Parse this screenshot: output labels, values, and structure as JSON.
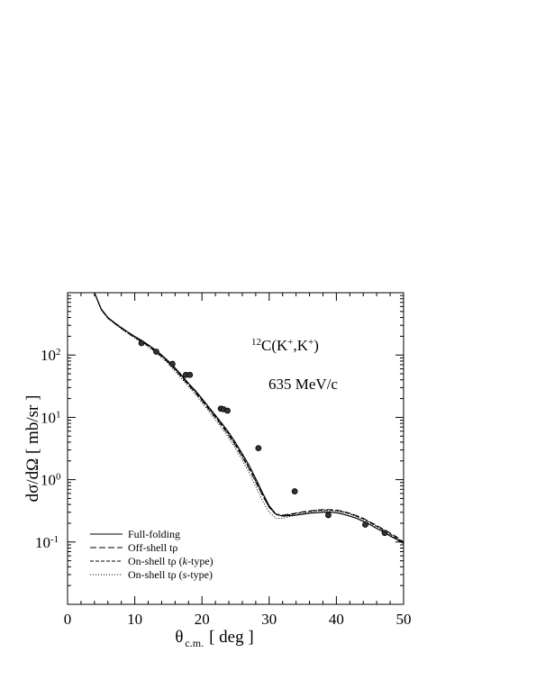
{
  "chart_data": {
    "type": "line",
    "title": "",
    "reaction": {
      "superscript": "12",
      "base": "C(K",
      "sup1": "+",
      "mid": ",K",
      "sup2": "+",
      "end": ")"
    },
    "momentum_label": "635 MeV/c",
    "xlabel": {
      "symbol": "θ",
      "subscript": "c.m.",
      "rest": "[ deg ]"
    },
    "ylabel": "dσ/dΩ   [ mb/sr ]",
    "xlim": [
      0,
      50
    ],
    "ylim": [
      0.01,
      1000
    ],
    "y_scale": "log",
    "x_ticks": [
      0,
      10,
      20,
      30,
      40,
      50
    ],
    "x_tick_labels": [
      "0",
      "10",
      "20",
      "30",
      "40",
      "50"
    ],
    "y_major_ticks": [
      {
        "value": 0.1,
        "base": "10",
        "exp": "-1"
      },
      {
        "value": 1,
        "base": "10",
        "exp": "0"
      },
      {
        "value": 10,
        "base": "10",
        "exp": "1"
      },
      {
        "value": 100,
        "base": "10",
        "exp": "2"
      }
    ],
    "grid": false,
    "legend_position": "bottom-left",
    "legend": [
      {
        "name": "Full-folding",
        "style": "solid"
      },
      {
        "name": "Off-shell tρ",
        "style": "dashed"
      },
      {
        "name": "On-shell tρ  (k-type)",
        "pre": "On-shell tρ  (",
        "italic": "k",
        "post": "-type)",
        "style": "short-dashed"
      },
      {
        "name": "On-shell tρ  (s-type)",
        "pre": "On-shell tρ  (",
        "italic": "s",
        "post": "-type)",
        "style": "dotted"
      }
    ],
    "series": [
      {
        "style": "solid",
        "x": [
          4,
          5,
          6,
          7,
          8,
          9,
          10,
          11,
          12,
          13,
          14,
          15,
          16,
          17,
          18,
          19,
          20,
          21,
          22,
          23,
          24,
          25,
          26,
          27,
          28,
          29,
          30,
          31,
          32,
          33,
          34,
          35,
          36,
          37,
          38,
          39,
          40,
          41,
          42,
          43,
          44,
          45,
          46,
          47,
          48,
          49,
          50
        ],
        "y": [
          1000,
          550,
          400,
          330,
          275,
          232,
          198,
          172,
          146,
          122,
          100,
          80,
          62,
          47,
          35,
          27,
          20,
          14.6,
          10.8,
          7.9,
          5.7,
          3.9,
          2.6,
          1.7,
          1.04,
          0.62,
          0.38,
          0.28,
          0.26,
          0.265,
          0.27,
          0.28,
          0.29,
          0.295,
          0.3,
          0.3,
          0.295,
          0.28,
          0.26,
          0.24,
          0.215,
          0.19,
          0.165,
          0.145,
          0.125,
          0.11,
          0.095
        ]
      },
      {
        "style": "dashed",
        "x": [
          4,
          5,
          6,
          7,
          8,
          9,
          10,
          11,
          12,
          13,
          14,
          15,
          16,
          17,
          18,
          19,
          20,
          21,
          22,
          23,
          24,
          25,
          26,
          27,
          28,
          29,
          30,
          31,
          32,
          33,
          34,
          35,
          36,
          37,
          38,
          39,
          40,
          41,
          42,
          43,
          44,
          45,
          46,
          47,
          48,
          49,
          50
        ],
        "y": [
          1000,
          540,
          392,
          323,
          268,
          226,
          192,
          166,
          140,
          116,
          95,
          76,
          58,
          44,
          33,
          25,
          18.5,
          13.5,
          9.9,
          7.2,
          5.1,
          3.5,
          2.3,
          1.5,
          0.92,
          0.56,
          0.36,
          0.28,
          0.27,
          0.28,
          0.29,
          0.305,
          0.315,
          0.325,
          0.33,
          0.33,
          0.325,
          0.31,
          0.29,
          0.265,
          0.24,
          0.21,
          0.185,
          0.16,
          0.14,
          0.12,
          0.1
        ]
      },
      {
        "style": "short-dashed",
        "x": [
          4,
          5,
          6,
          7,
          8,
          9,
          10,
          11,
          12,
          13,
          14,
          15,
          16,
          17,
          18,
          19,
          20,
          21,
          22,
          23,
          24,
          25,
          26,
          27,
          28,
          29,
          30,
          31,
          32,
          33,
          34,
          35,
          36,
          37,
          38,
          39,
          40,
          41,
          42,
          43,
          44,
          45,
          46,
          47,
          48,
          49,
          50
        ],
        "y": [
          1000,
          545,
          396,
          326,
          271,
          229,
          195,
          169,
          143,
          119,
          97,
          78,
          60,
          45.5,
          34,
          26,
          19.2,
          14,
          10.3,
          7.5,
          5.35,
          3.65,
          2.4,
          1.55,
          0.95,
          0.57,
          0.36,
          0.275,
          0.265,
          0.275,
          0.285,
          0.3,
          0.31,
          0.32,
          0.325,
          0.325,
          0.32,
          0.305,
          0.285,
          0.26,
          0.235,
          0.205,
          0.18,
          0.155,
          0.135,
          0.115,
          0.098
        ]
      },
      {
        "style": "dotted",
        "x": [
          4,
          5,
          6,
          7,
          8,
          9,
          10,
          11,
          12,
          13,
          14,
          15,
          16,
          17,
          18,
          19,
          20,
          21,
          22,
          23,
          24,
          25,
          26,
          27,
          28,
          29,
          30,
          31,
          32,
          33,
          34,
          35,
          36,
          37,
          38,
          39,
          40,
          41,
          42,
          43,
          44,
          45,
          46,
          47,
          48,
          49,
          50
        ],
        "y": [
          1000,
          530,
          385,
          316,
          262,
          220,
          186,
          160,
          135,
          111,
          91,
          72,
          55,
          41.5,
          31,
          23.5,
          17.2,
          12.5,
          9.1,
          6.6,
          4.65,
          3.15,
          2.05,
          1.3,
          0.78,
          0.46,
          0.3,
          0.24,
          0.24,
          0.255,
          0.27,
          0.285,
          0.3,
          0.31,
          0.315,
          0.315,
          0.31,
          0.3,
          0.28,
          0.255,
          0.23,
          0.2,
          0.175,
          0.15,
          0.13,
          0.112,
          0.095
        ]
      }
    ],
    "data_points": {
      "x": [
        11,
        13.2,
        15.6,
        17.6,
        18.2,
        22.8,
        23.2,
        23.8,
        28.4,
        33.8,
        38.8,
        44.3,
        47.2
      ],
      "y": [
        155,
        113,
        72,
        48,
        48,
        13.8,
        13.5,
        12.8,
        3.2,
        0.65,
        0.27,
        0.19,
        0.14
      ]
    }
  }
}
